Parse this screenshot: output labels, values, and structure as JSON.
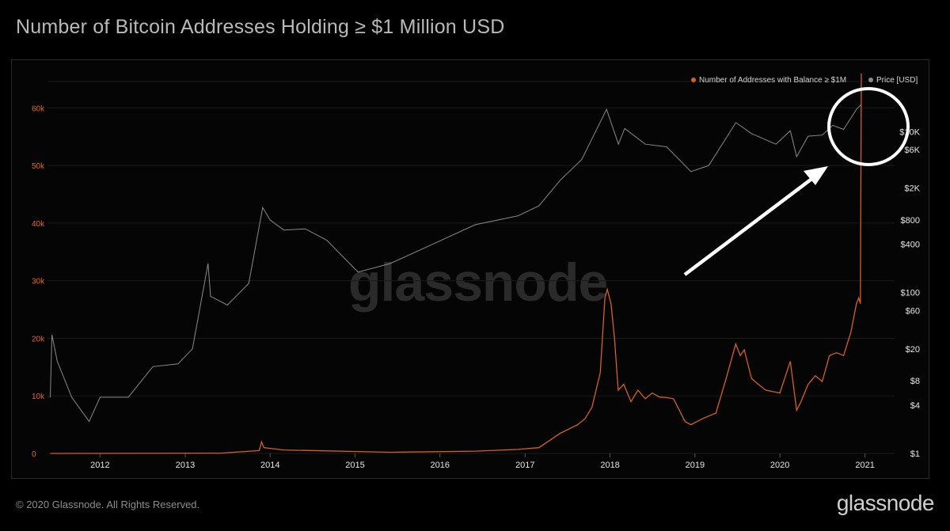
{
  "title": "Number of Bitcoin Addresses Holding ≥ $1 Million USD",
  "footer": {
    "copyright": "© 2020 Glassnode. All Rights Reserved.",
    "logo": "glassnode"
  },
  "watermark": "glassnode",
  "colors": {
    "addresses": "#d4621c",
    "price": "#8a8a8a",
    "background": "#000000"
  },
  "chart_data": {
    "type": "line",
    "legend_position": "top-right",
    "x_ticks": [
      "2012",
      "2013",
      "2014",
      "2015",
      "2016",
      "2017",
      "2018",
      "2019",
      "2020",
      "2021"
    ],
    "y_left": {
      "ticks": [
        "0",
        "10k",
        "20k",
        "30k",
        "40k",
        "50k",
        "60k"
      ],
      "range": [
        0,
        65000
      ]
    },
    "y_right": {
      "scale": "log",
      "ticks": [
        "$1",
        "$4",
        "$8",
        "$20",
        "$60",
        "$100",
        "$400",
        "$800",
        "$2K",
        "$6K",
        "$10K"
      ],
      "range": [
        1,
        30000
      ]
    },
    "series": [
      {
        "name": "Number of Addresses with Balance ≥ $1M",
        "axis": "left",
        "points": [
          [
            "2011-06-01",
            0
          ],
          [
            "2013-06-01",
            50
          ],
          [
            "2013-11-15",
            500
          ],
          [
            "2013-11-25",
            2000
          ],
          [
            "2013-12-05",
            1000
          ],
          [
            "2014-03-01",
            600
          ],
          [
            "2015-06-01",
            200
          ],
          [
            "2016-06-01",
            400
          ],
          [
            "2016-12-01",
            700
          ],
          [
            "2017-03-01",
            1000
          ],
          [
            "2017-06-01",
            3500
          ],
          [
            "2017-08-15",
            5000
          ],
          [
            "2017-09-15",
            6000
          ],
          [
            "2017-10-15",
            8000
          ],
          [
            "2017-11-20",
            14000
          ],
          [
            "2017-12-10",
            27000
          ],
          [
            "2017-12-20",
            28500
          ],
          [
            "2018-01-05",
            26000
          ],
          [
            "2018-01-20",
            20000
          ],
          [
            "2018-02-05",
            11000
          ],
          [
            "2018-03-01",
            12000
          ],
          [
            "2018-04-01",
            9000
          ],
          [
            "2018-05-01",
            11000
          ],
          [
            "2018-06-01",
            9500
          ],
          [
            "2018-07-01",
            10500
          ],
          [
            "2018-08-01",
            9800
          ],
          [
            "2018-09-01",
            9700
          ],
          [
            "2018-10-01",
            9500
          ],
          [
            "2018-11-20",
            5500
          ],
          [
            "2018-12-15",
            5000
          ],
          [
            "2019-02-01",
            6000
          ],
          [
            "2019-03-01",
            6500
          ],
          [
            "2019-04-01",
            7000
          ],
          [
            "2019-05-15",
            13000
          ],
          [
            "2019-06-25",
            19000
          ],
          [
            "2019-07-15",
            17000
          ],
          [
            "2019-08-01",
            18000
          ],
          [
            "2019-09-01",
            13000
          ],
          [
            "2019-10-01",
            12000
          ],
          [
            "2019-11-01",
            11000
          ],
          [
            "2020-01-01",
            10500
          ],
          [
            "2020-02-15",
            16000
          ],
          [
            "2020-03-13",
            7500
          ],
          [
            "2020-04-01",
            9000
          ],
          [
            "2020-05-01",
            12000
          ],
          [
            "2020-06-01",
            13500
          ],
          [
            "2020-07-01",
            12500
          ],
          [
            "2020-08-01",
            17000
          ],
          [
            "2020-09-01",
            17500
          ],
          [
            "2020-10-01",
            17000
          ],
          [
            "2020-11-01",
            21000
          ],
          [
            "2020-11-25",
            26000
          ],
          [
            "2020-12-05",
            27000
          ],
          [
            "2020-12-12",
            26000
          ],
          [
            "2020-12-16",
            66000
          ]
        ]
      },
      {
        "name": "Price [USD]",
        "axis": "right",
        "points": [
          [
            "2011-06-01",
            5
          ],
          [
            "2011-06-08",
            30
          ],
          [
            "2011-07-01",
            14
          ],
          [
            "2011-09-01",
            5
          ],
          [
            "2011-11-15",
            2.5
          ],
          [
            "2012-01-01",
            5
          ],
          [
            "2012-05-01",
            5
          ],
          [
            "2012-08-15",
            12
          ],
          [
            "2012-12-01",
            13
          ],
          [
            "2013-02-01",
            20
          ],
          [
            "2013-04-09",
            230
          ],
          [
            "2013-04-20",
            90
          ],
          [
            "2013-07-01",
            70
          ],
          [
            "2013-10-01",
            130
          ],
          [
            "2013-11-30",
            1140
          ],
          [
            "2014-01-01",
            800
          ],
          [
            "2014-03-01",
            600
          ],
          [
            "2014-06-01",
            620
          ],
          [
            "2014-09-01",
            450
          ],
          [
            "2015-01-14",
            180
          ],
          [
            "2015-06-01",
            230
          ],
          [
            "2015-12-01",
            400
          ],
          [
            "2016-06-01",
            700
          ],
          [
            "2016-12-01",
            900
          ],
          [
            "2017-03-01",
            1200
          ],
          [
            "2017-06-01",
            2500
          ],
          [
            "2017-09-01",
            4500
          ],
          [
            "2017-12-17",
            19000
          ],
          [
            "2018-02-06",
            7000
          ],
          [
            "2018-03-05",
            11000
          ],
          [
            "2018-06-01",
            7000
          ],
          [
            "2018-09-01",
            6500
          ],
          [
            "2018-12-15",
            3200
          ],
          [
            "2019-03-01",
            3800
          ],
          [
            "2019-06-26",
            13000
          ],
          [
            "2019-09-01",
            9500
          ],
          [
            "2019-12-15",
            7000
          ],
          [
            "2020-02-15",
            10300
          ],
          [
            "2020-03-13",
            4900
          ],
          [
            "2020-05-01",
            8800
          ],
          [
            "2020-07-01",
            9100
          ],
          [
            "2020-08-15",
            12000
          ],
          [
            "2020-10-01",
            10700
          ],
          [
            "2020-11-25",
            19000
          ],
          [
            "2020-12-16",
            22000
          ]
        ]
      }
    ]
  },
  "annotations": [
    {
      "type": "arrow-and-circle",
      "target": "2020-12"
    }
  ]
}
